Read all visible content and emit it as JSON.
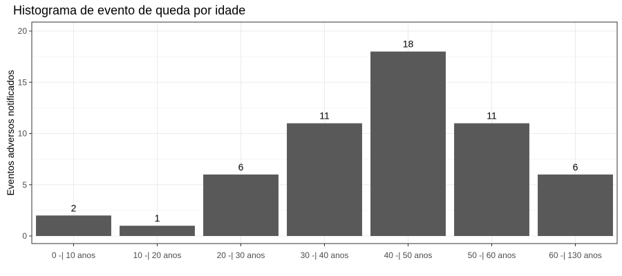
{
  "chart_data": {
    "type": "bar",
    "title": "Histograma de evento de queda por idade",
    "xlabel": "",
    "ylabel": "Eventos adversos notificados",
    "categories": [
      "0 -| 10 anos",
      "10 -| 20 anos",
      "20 -| 30 anos",
      "30 -| 40 anos",
      "40 -| 50 anos",
      "50 -| 60 anos",
      "60 -| 130 anos"
    ],
    "values": [
      2,
      1,
      6,
      11,
      18,
      11,
      6
    ],
    "data_labels": [
      "2",
      "1",
      "6",
      "11",
      "18",
      "11",
      "6"
    ],
    "y_ticks": [
      0,
      5,
      10,
      15,
      20
    ],
    "ylim": [
      0,
      20
    ],
    "grid": true,
    "legend": "none",
    "colors": {
      "bar": "#595959",
      "grid_major": "#ebebeb",
      "grid_minor": "#f5f5f5",
      "panel_border": "#333333"
    }
  }
}
